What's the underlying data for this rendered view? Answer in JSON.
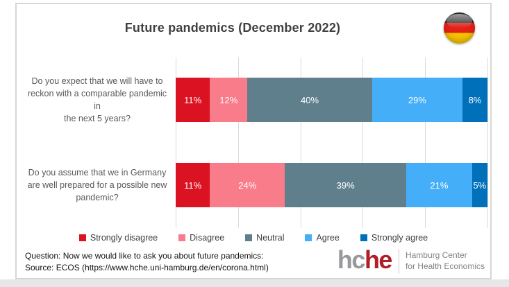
{
  "page": {
    "title": "Future pandemics (December 2022)",
    "flag_icon": "german-flag-round",
    "footer": {
      "line1": "Question: Now we would like to ask you about future pandemics:",
      "line2": "Source: ECOS (https://www.hche.uni-hamburg.de/en/corona.html)"
    },
    "logo": {
      "word_part1": "hc",
      "word_part2": "he",
      "caption_line1": "Hamburg Center",
      "caption_line2": "for Health Economics"
    }
  },
  "colors": {
    "strongly_disagree": "#db1222",
    "disagree": "#f97c8b",
    "neutral": "#5f7f8d",
    "agree": "#45aef8",
    "strongly_agree": "#0070ba",
    "gridline": "#d9d9d9",
    "title_text": "#404040",
    "label_text": "#595959",
    "logo_gray": "#97999c",
    "logo_red": "#b01e28"
  },
  "chart_data": {
    "type": "bar",
    "variant": "horizontal_stacked_100pct",
    "title": "Future pandemics (December 2022)",
    "xlim": [
      0,
      100
    ],
    "grid": true,
    "gridline_interval_pct": 20,
    "legend_position": "bottom",
    "categories": [
      "Do you expect that we will have to reckon with a comparable pandemic in the next 5 years?",
      "Do you assume that we in Germany are well prepared for a possible new pandemic?"
    ],
    "series": [
      {
        "name": "Strongly disagree",
        "values": [
          11,
          11
        ]
      },
      {
        "name": "Disagree",
        "values": [
          12,
          24
        ]
      },
      {
        "name": "Neutral",
        "values": [
          40,
          39
        ]
      },
      {
        "name": "Agree",
        "values": [
          29,
          21
        ]
      },
      {
        "name": "Strongly agree",
        "values": [
          8,
          5
        ]
      }
    ],
    "legend_items": [
      {
        "label": "Strongly disagree",
        "color_key": "strongly_disagree"
      },
      {
        "label": "Disagree",
        "color_key": "disagree"
      },
      {
        "label": "Neutral",
        "color_key": "neutral"
      },
      {
        "label": "Agree",
        "color_key": "agree"
      },
      {
        "label": "Strongly agree",
        "color_key": "strongly_agree"
      }
    ],
    "rows": [
      {
        "label_line1": "Do you expect that we will have to",
        "label_line2": "reckon with a comparable pandemic in",
        "label_line3": "the next 5 years?",
        "segments": [
          {
            "name": "Strongly disagree",
            "value": 11,
            "label": "11%",
            "color": "#db1222"
          },
          {
            "name": "Disagree",
            "value": 12,
            "label": "12%",
            "color": "#f97c8b"
          },
          {
            "name": "Neutral",
            "value": 40,
            "label": "40%",
            "color": "#5f7f8d"
          },
          {
            "name": "Agree",
            "value": 29,
            "label": "29%",
            "color": "#45aef8"
          },
          {
            "name": "Strongly agree",
            "value": 8,
            "label": "8%",
            "color": "#0070ba"
          }
        ]
      },
      {
        "label_line1": "Do you assume that we in Germany",
        "label_line2": "are well prepared for a possible new",
        "label_line3": "pandemic?",
        "segments": [
          {
            "name": "Strongly disagree",
            "value": 11,
            "label": "11%",
            "color": "#db1222"
          },
          {
            "name": "Disagree",
            "value": 24,
            "label": "24%",
            "color": "#f97c8b"
          },
          {
            "name": "Neutral",
            "value": 39,
            "label": "39%",
            "color": "#5f7f8d"
          },
          {
            "name": "Agree",
            "value": 21,
            "label": "21%",
            "color": "#45aef8"
          },
          {
            "name": "Strongly agree",
            "value": 5,
            "label": "5%",
            "color": "#0070ba"
          }
        ]
      }
    ]
  }
}
